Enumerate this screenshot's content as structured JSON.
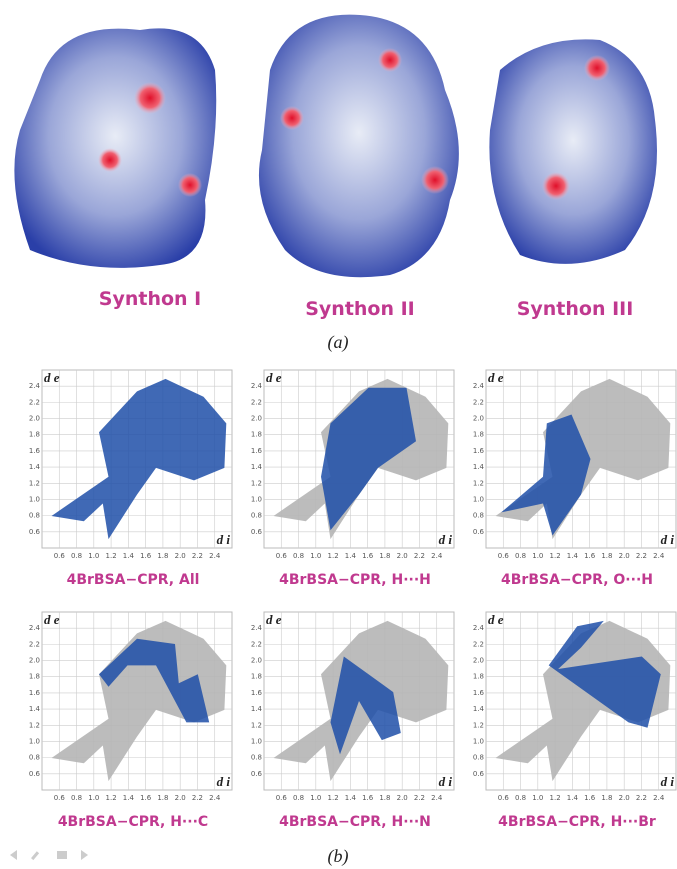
{
  "panel_a": {
    "synthons": [
      "Synthon I",
      "Synthon II",
      "Synthon III"
    ],
    "caption": "(a)"
  },
  "panel_b": {
    "caption": "(b)",
    "axes": {
      "x_label": "d i",
      "y_label": "d e",
      "xlim": [
        0.4,
        2.6
      ],
      "ylim": [
        0.4,
        2.6
      ],
      "xticks": [
        0.6,
        0.8,
        {
          "value": 1.0,
          "label": "1.0"
        },
        1.2,
        1.4,
        1.6,
        1.8,
        {
          "value": 2.0,
          "label": "2.0"
        },
        2.2,
        2.4
      ],
      "yticks": [
        0.6,
        0.8,
        {
          "value": 1.0,
          "label": "1.0"
        },
        1.2,
        1.4,
        1.6,
        1.8,
        {
          "value": 2.0,
          "label": "2.0"
        },
        2.2,
        2.4
      ]
    },
    "plots": [
      "4BrBSA−CPR, All",
      "4BrBSA−CPR, H···H",
      "4BrBSA−CPR, O···H",
      "4BrBSA−CPR, H···C",
      "4BrBSA−CPR, H···N",
      "4BrBSA−CPR, H···Br"
    ]
  }
}
